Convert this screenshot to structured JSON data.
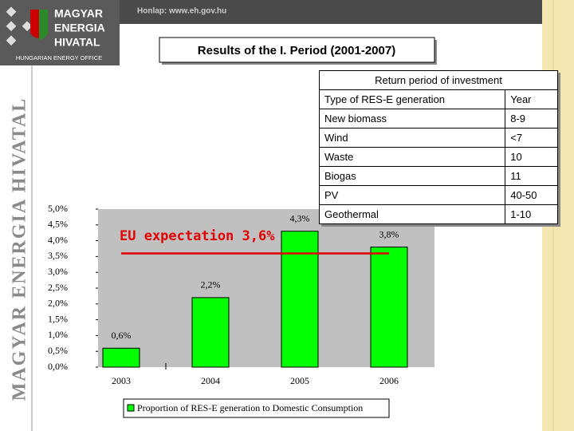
{
  "header": {
    "url": "Honlap: www.eh.gov.hu",
    "logo": [
      "MAGYAR",
      "ENERGIA",
      "HIVATAL"
    ],
    "logo_subtitle": "HUNGARIAN ENERGY OFFICE",
    "side_text": "MAGYAR ENERGIA HIVATAL"
  },
  "title": "Results of the I. Period (2001-2007)",
  "chart_data": {
    "type": "bar",
    "categories": [
      "2003",
      "2004",
      "2005",
      "2006"
    ],
    "series": [
      {
        "name": "Proportion of RES-E generation to Domestic Consumption",
        "color": "#00ff00",
        "values": [
          0.6,
          2.2,
          4.3,
          3.8
        ],
        "value_labels": [
          "0,6%",
          "2,2%",
          "4,3%",
          "3,8%"
        ]
      }
    ],
    "ylim": [
      0,
      5
    ],
    "yticks": [
      {
        "value": 0,
        "label": "0,0%"
      },
      {
        "value": 0.5,
        "label": "0,5%"
      },
      {
        "value": 1,
        "label": "1,0%"
      },
      {
        "value": 1.5,
        "label": "1,5%"
      },
      {
        "value": 2,
        "label": "2,0%"
      },
      {
        "value": 2.5,
        "label": "2,5%"
      },
      {
        "value": 3,
        "label": "3,0%"
      },
      {
        "value": 3.5,
        "label": "3,5%"
      },
      {
        "value": 4,
        "label": "4,0%"
      },
      {
        "value": 4.5,
        "label": "4,5%"
      },
      {
        "value": 5,
        "label": "5,0%"
      }
    ],
    "annotations": [
      {
        "text": "EU expectation 3,6%",
        "value": 3.6,
        "color": "#e00000"
      }
    ]
  },
  "table": {
    "title": "Return period of investment",
    "rows": [
      [
        "Type of RES-E generation",
        "Year"
      ],
      [
        "New biomass",
        "8-9"
      ],
      [
        "Wind",
        "<7"
      ],
      [
        "Waste",
        "10"
      ],
      [
        "Biogas",
        "11"
      ],
      [
        "PV",
        "40-50"
      ],
      [
        "Geothermal",
        "1-10"
      ]
    ]
  }
}
